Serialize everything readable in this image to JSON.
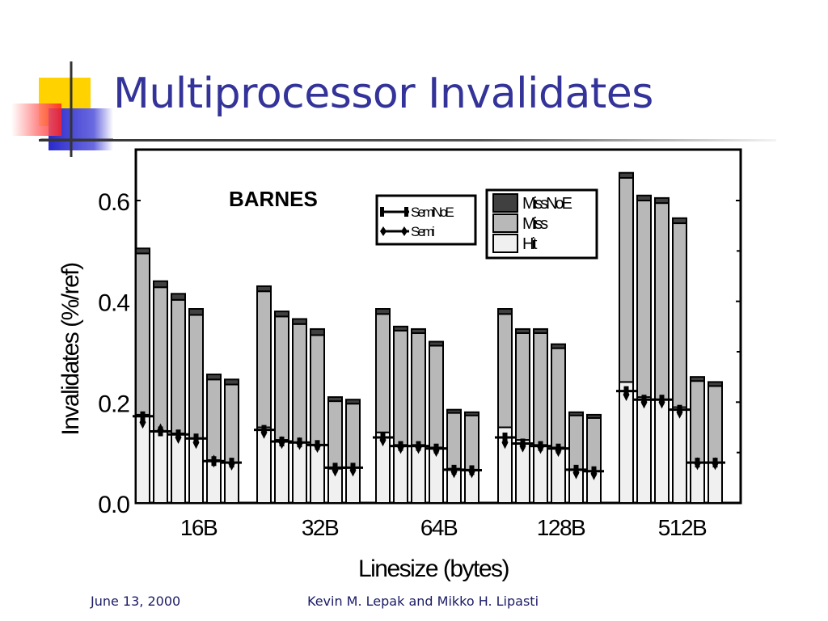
{
  "slide": {
    "title": "Multiprocessor Invalidates",
    "footer_date": "June 13, 2000",
    "footer_authors": "Kevin M. Lepak and Mikko H. Lipasti"
  },
  "colors": {
    "title": "#333399",
    "miss_no_e": "#404040",
    "miss": "#b8b8b8",
    "hit": "#f0f0f0",
    "logo_yellow": "#ffd200",
    "logo_blue": "#2a2acc",
    "logo_red": "#ff4040"
  },
  "chart_data": {
    "type": "bar",
    "annotation": "BARNES",
    "xlabel": "Linesize (bytes)",
    "ylabel": "Invalidates (%/ref)",
    "ylim": [
      0,
      0.7
    ],
    "yticks": [
      "0.0",
      "0.2",
      "0.4",
      "0.6"
    ],
    "grid": false,
    "categories": [
      "16B",
      "32B",
      "64B",
      "128B",
      "512B"
    ],
    "bars_per_category": 6,
    "stack_legend": {
      "placement": "top-right",
      "entries": [
        "MissNoE",
        "Miss",
        "Hit"
      ]
    },
    "marker_legend": {
      "placement": "top-center",
      "entries": [
        "SemiNoE",
        "Semi"
      ]
    },
    "stacked_totals": [
      [
        0.505,
        0.44,
        0.415,
        0.385,
        0.255,
        0.245
      ],
      [
        0.43,
        0.38,
        0.365,
        0.345,
        0.21,
        0.205
      ],
      [
        0.385,
        0.35,
        0.345,
        0.32,
        0.185,
        0.18
      ],
      [
        0.385,
        0.345,
        0.345,
        0.315,
        0.18,
        0.175
      ],
      [
        0.655,
        0.61,
        0.605,
        0.565,
        0.25,
        0.24
      ]
    ],
    "series": [
      {
        "name": "MissNoE",
        "values": [
          [
            0.01,
            0.012,
            0.012,
            0.012,
            0.01,
            0.01
          ],
          [
            0.01,
            0.01,
            0.01,
            0.012,
            0.008,
            0.008
          ],
          [
            0.01,
            0.008,
            0.008,
            0.008,
            0.006,
            0.006
          ],
          [
            0.01,
            0.008,
            0.008,
            0.008,
            0.006,
            0.006
          ],
          [
            0.01,
            0.01,
            0.01,
            0.01,
            0.008,
            0.008
          ]
        ]
      },
      {
        "name": "Miss",
        "values": [
          [
            0.32,
            0.285,
            0.265,
            0.245,
            0.16,
            0.155
          ],
          [
            0.27,
            0.245,
            0.235,
            0.218,
            0.134,
            0.127
          ],
          [
            0.235,
            0.227,
            0.222,
            0.202,
            0.111,
            0.108
          ],
          [
            0.225,
            0.212,
            0.222,
            0.197,
            0.109,
            0.106
          ],
          [
            0.405,
            0.39,
            0.39,
            0.365,
            0.162,
            0.152
          ]
        ]
      },
      {
        "name": "Hit",
        "values": [
          [
            0.175,
            0.143,
            0.138,
            0.128,
            0.085,
            0.08
          ],
          [
            0.15,
            0.125,
            0.12,
            0.115,
            0.068,
            0.07
          ],
          [
            0.14,
            0.115,
            0.115,
            0.11,
            0.068,
            0.066
          ],
          [
            0.15,
            0.125,
            0.115,
            0.11,
            0.065,
            0.063
          ],
          [
            0.24,
            0.21,
            0.205,
            0.19,
            0.08,
            0.08
          ]
        ]
      },
      {
        "name": "SemiNoE",
        "values": [
          [
            0.172,
            0.142,
            0.136,
            0.128,
            0.083,
            0.08
          ],
          [
            0.145,
            0.122,
            0.12,
            0.115,
            0.07,
            0.07
          ],
          [
            0.13,
            0.113,
            0.113,
            0.108,
            0.066,
            0.065
          ],
          [
            0.13,
            0.118,
            0.113,
            0.108,
            0.066,
            0.063
          ],
          [
            0.222,
            0.205,
            0.205,
            0.185,
            0.08,
            0.08
          ]
        ]
      },
      {
        "name": "Semi",
        "values": [
          [
            0.16,
            0.145,
            0.13,
            0.12,
            0.083,
            0.077
          ],
          [
            0.14,
            0.12,
            0.118,
            0.112,
            0.065,
            0.065
          ],
          [
            0.125,
            0.11,
            0.11,
            0.104,
            0.062,
            0.062
          ],
          [
            0.12,
            0.113,
            0.11,
            0.104,
            0.06,
            0.058
          ],
          [
            0.215,
            0.2,
            0.2,
            0.18,
            0.078,
            0.078
          ]
        ]
      }
    ]
  }
}
